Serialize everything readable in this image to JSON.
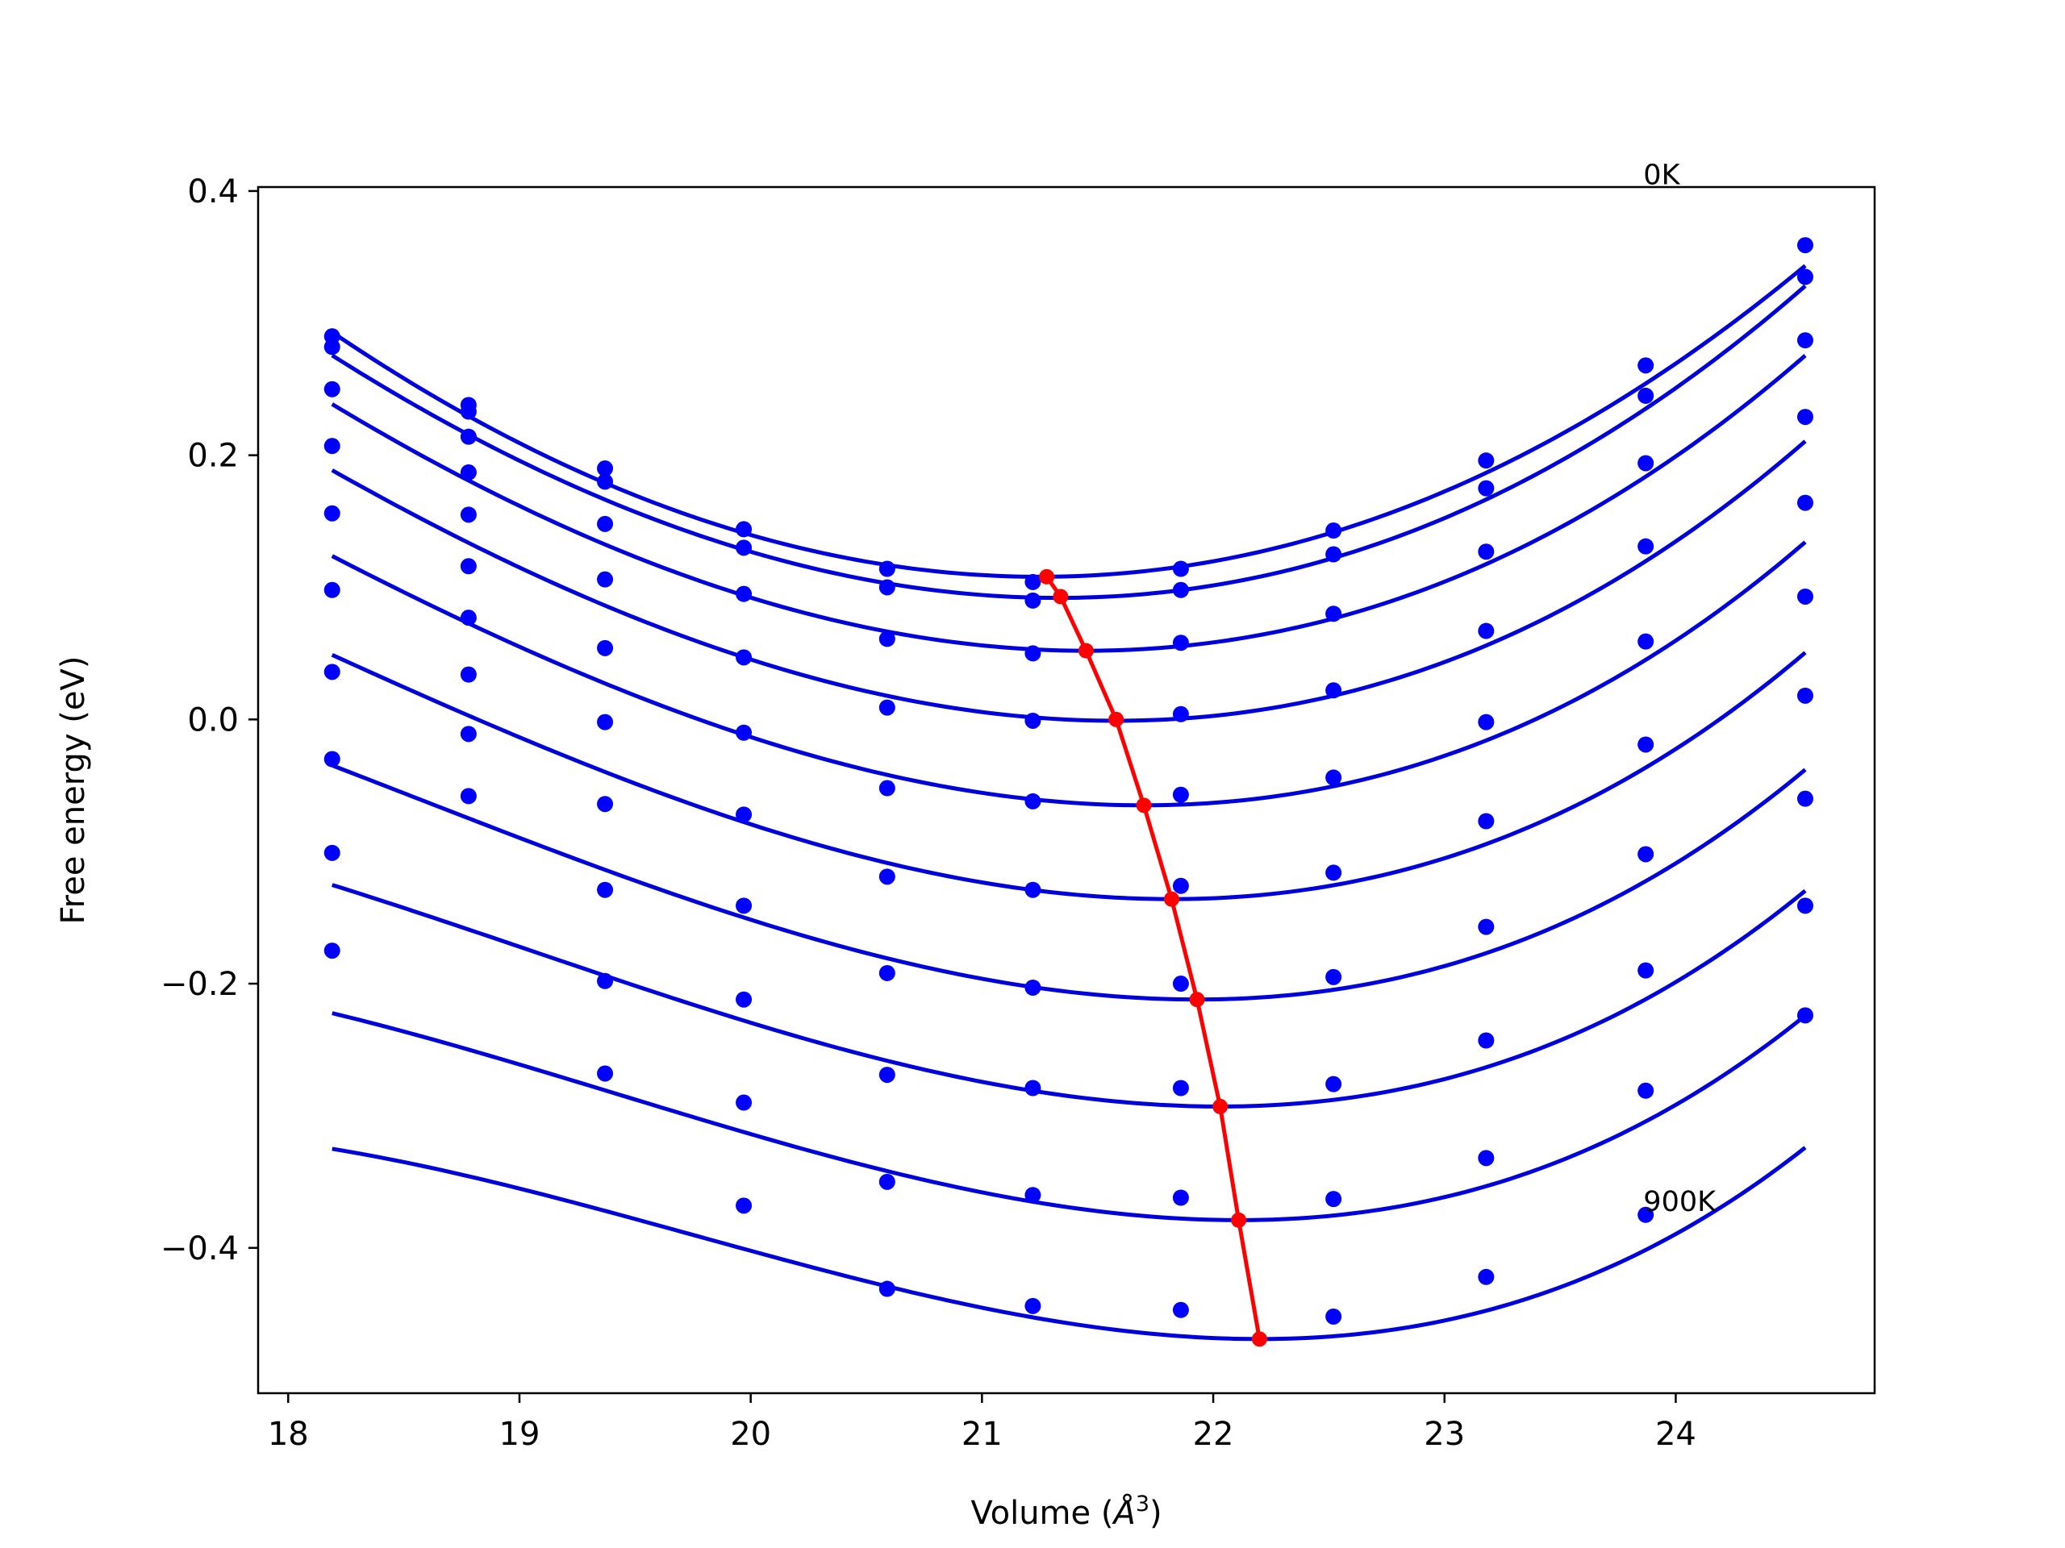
{
  "chart_data": {
    "type": "scatter",
    "xlabel": "Volume (",
    "xlabel_symbol": "Å",
    "xlabel_exponent": "3",
    "xlabel_close": ")",
    "ylabel": "Free energy (eV)",
    "xlim": [
      17.87,
      24.86
    ],
    "ylim": [
      -0.51,
      0.403
    ],
    "xticks": [
      18,
      19,
      20,
      21,
      22,
      23,
      24
    ],
    "yticks": [
      -0.4,
      -0.2,
      0.0,
      0.2,
      0.4
    ],
    "xtick_labels": [
      "18",
      "19",
      "20",
      "21",
      "22",
      "23",
      "24"
    ],
    "ytick_labels": [
      "−0.4",
      "−0.2",
      "0.0",
      "0.2",
      "0.4"
    ],
    "grid": false,
    "legend": "none",
    "x": [
      18.19,
      18.78,
      19.37,
      19.97,
      20.59,
      21.22,
      21.86,
      22.52,
      23.18,
      23.87,
      24.56
    ],
    "series": [
      {
        "values": [
          0.29,
          0.238,
          0.19,
          0.144,
          0.114,
          0.104,
          0.114,
          0.143,
          0.196,
          0.268,
          0.359
        ]
      },
      {
        "values": [
          0.282,
          0.233,
          0.18,
          0.13,
          0.1,
          0.09,
          0.098,
          0.125,
          0.175,
          0.245,
          0.335
        ]
      },
      {
        "values": [
          0.25,
          0.214,
          0.148,
          0.095,
          0.061,
          0.05,
          0.058,
          0.08,
          0.127,
          0.194,
          0.287
        ]
      },
      {
        "values": [
          0.207,
          0.187,
          0.106,
          0.047,
          0.009,
          -0.001,
          0.004,
          0.022,
          0.067,
          0.131,
          0.229
        ]
      },
      {
        "values": [
          0.156,
          0.155,
          0.054,
          -0.01,
          -0.052,
          -0.062,
          -0.057,
          -0.044,
          -0.002,
          0.059,
          0.164
        ]
      },
      {
        "values": [
          0.098,
          0.116,
          -0.002,
          -0.072,
          -0.119,
          -0.129,
          -0.126,
          -0.116,
          -0.077,
          -0.019,
          0.093
        ]
      },
      {
        "values": [
          0.036,
          0.077,
          -0.064,
          -0.141,
          -0.192,
          -0.203,
          -0.2,
          -0.195,
          -0.157,
          -0.102,
          0.018
        ]
      },
      {
        "values": [
          -0.03,
          0.034,
          -0.129,
          -0.212,
          -0.269,
          -0.279,
          -0.279,
          -0.276,
          -0.243,
          -0.19,
          -0.06
        ]
      },
      {
        "values": [
          -0.101,
          -0.011,
          -0.198,
          -0.29,
          -0.35,
          -0.36,
          -0.362,
          -0.363,
          -0.332,
          -0.281,
          -0.141
        ]
      },
      {
        "values": [
          -0.175,
          -0.058,
          -0.268,
          -0.368,
          -0.431,
          -0.444,
          -0.447,
          -0.452,
          -0.422,
          -0.375,
          -0.224
        ]
      }
    ],
    "fits": [
      {
        "v0": 21.25,
        "e0": 0.108,
        "k": 0.0206,
        "c": 0.00027
      },
      {
        "v0": 21.33,
        "e0": 0.092,
        "k": 0.0206,
        "c": 0.00063
      },
      {
        "v0": 21.45,
        "e0": 0.052,
        "k": 0.0204,
        "c": 0.00087
      },
      {
        "v0": 21.58,
        "e0": -0.001,
        "k": 0.0204,
        "c": 0.00115
      },
      {
        "v0": 21.7,
        "e0": -0.065,
        "k": 0.0203,
        "c": 0.00142
      },
      {
        "v0": 21.82,
        "e0": -0.136,
        "k": 0.0202,
        "c": 0.0017
      },
      {
        "v0": 21.93,
        "e0": -0.212,
        "k": 0.02,
        "c": 0.00196
      },
      {
        "v0": 22.03,
        "e0": -0.293,
        "k": 0.0199,
        "c": 0.00222
      },
      {
        "v0": 22.11,
        "e0": -0.379,
        "k": 0.0198,
        "c": 0.00245
      },
      {
        "v0": 22.2,
        "e0": -0.469,
        "k": 0.0197,
        "c": 0.00268
      }
    ],
    "minima": {
      "x": [
        21.28,
        21.34,
        21.45,
        21.58,
        21.7,
        21.82,
        21.93,
        22.03,
        22.11,
        22.2
      ],
      "y": [
        0.108,
        0.093,
        0.052,
        0.0,
        -0.065,
        -0.136,
        -0.212,
        -0.293,
        -0.379,
        -0.469
      ]
    },
    "annotations": [
      {
        "text": "0K",
        "x": 23.86,
        "y": 0.405
      },
      {
        "text": "900K",
        "x": 23.86,
        "y": -0.372
      }
    ],
    "colors": {
      "points": "#0000ff",
      "fits": "#0000dd",
      "minima": "#ff0000",
      "axes": "#000000"
    }
  }
}
